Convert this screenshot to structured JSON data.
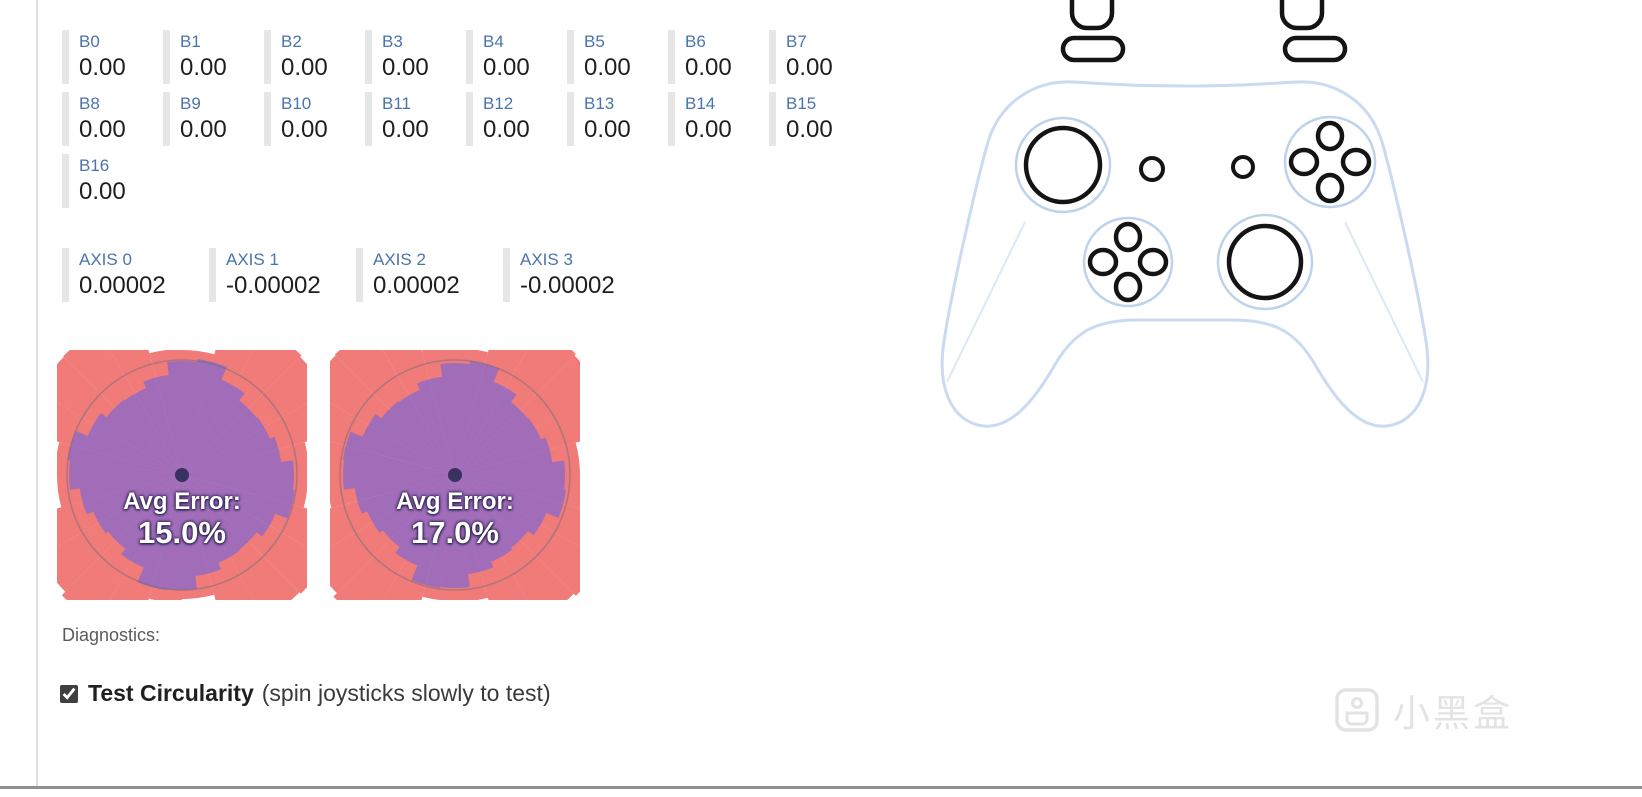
{
  "buttons": [
    {
      "label": "B0",
      "value": "0.00"
    },
    {
      "label": "B1",
      "value": "0.00"
    },
    {
      "label": "B2",
      "value": "0.00"
    },
    {
      "label": "B3",
      "value": "0.00"
    },
    {
      "label": "B4",
      "value": "0.00"
    },
    {
      "label": "B5",
      "value": "0.00"
    },
    {
      "label": "B6",
      "value": "0.00"
    },
    {
      "label": "B7",
      "value": "0.00"
    },
    {
      "label": "B8",
      "value": "0.00"
    },
    {
      "label": "B9",
      "value": "0.00"
    },
    {
      "label": "B10",
      "value": "0.00"
    },
    {
      "label": "B11",
      "value": "0.00"
    },
    {
      "label": "B12",
      "value": "0.00"
    },
    {
      "label": "B13",
      "value": "0.00"
    },
    {
      "label": "B14",
      "value": "0.00"
    },
    {
      "label": "B15",
      "value": "0.00"
    },
    {
      "label": "B16",
      "value": "0.00"
    }
  ],
  "axes": [
    {
      "label": "AXIS 0",
      "value": "0.00002"
    },
    {
      "label": "AXIS 1",
      "value": "-0.00002"
    },
    {
      "label": "AXIS 2",
      "value": "0.00002"
    },
    {
      "label": "AXIS 3",
      "value": "-0.00002"
    }
  ],
  "chart_data": [
    {
      "type": "polar-circularity",
      "center_label": "Avg Error:",
      "avg_error": "15.0%",
      "sectors": 24,
      "unit_circle_radius": 115,
      "red_radii": [
        126,
        151,
        168,
        166,
        149,
        124,
        128,
        153,
        170,
        165,
        148,
        125,
        127,
        150,
        167,
        168,
        151,
        126,
        125,
        152,
        169,
        167,
        150,
        127
      ],
      "blue_radii": [
        114,
        101,
        94,
        95,
        102,
        115,
        116,
        100,
        93,
        96,
        103,
        113,
        115,
        102,
        95,
        94,
        101,
        114,
        117,
        103,
        94,
        95,
        100,
        112
      ]
    },
    {
      "type": "polar-circularity",
      "center_label": "Avg Error:",
      "avg_error": "17.0%",
      "sectors": 24,
      "unit_circle_radius": 115,
      "red_radii": [
        129,
        154,
        171,
        168,
        152,
        127,
        126,
        155,
        172,
        167,
        151,
        128,
        130,
        153,
        169,
        170,
        154,
        129,
        127,
        154,
        171,
        169,
        152,
        125
      ],
      "blue_radii": [
        112,
        99,
        92,
        94,
        100,
        113,
        114,
        98,
        91,
        95,
        101,
        112,
        113,
        100,
        93,
        92,
        99,
        112,
        115,
        101,
        92,
        93,
        98,
        110
      ]
    }
  ],
  "diagnostics": {
    "label": "Diagnostics:"
  },
  "circularity_test": {
    "label": "Test Circularity",
    "hint": "(spin joysticks slowly to test)",
    "checked": true
  },
  "watermark": {
    "text": "小黑盒"
  },
  "colors": {
    "label_blue": "#4a74ad",
    "wedge_red": "rgba(236,90,86,0.8)",
    "wedge_blue": "rgba(96,98,238,0.55)",
    "center_dot": "#3a3163",
    "unit_circle": "rgba(110,110,125,0.5)"
  }
}
